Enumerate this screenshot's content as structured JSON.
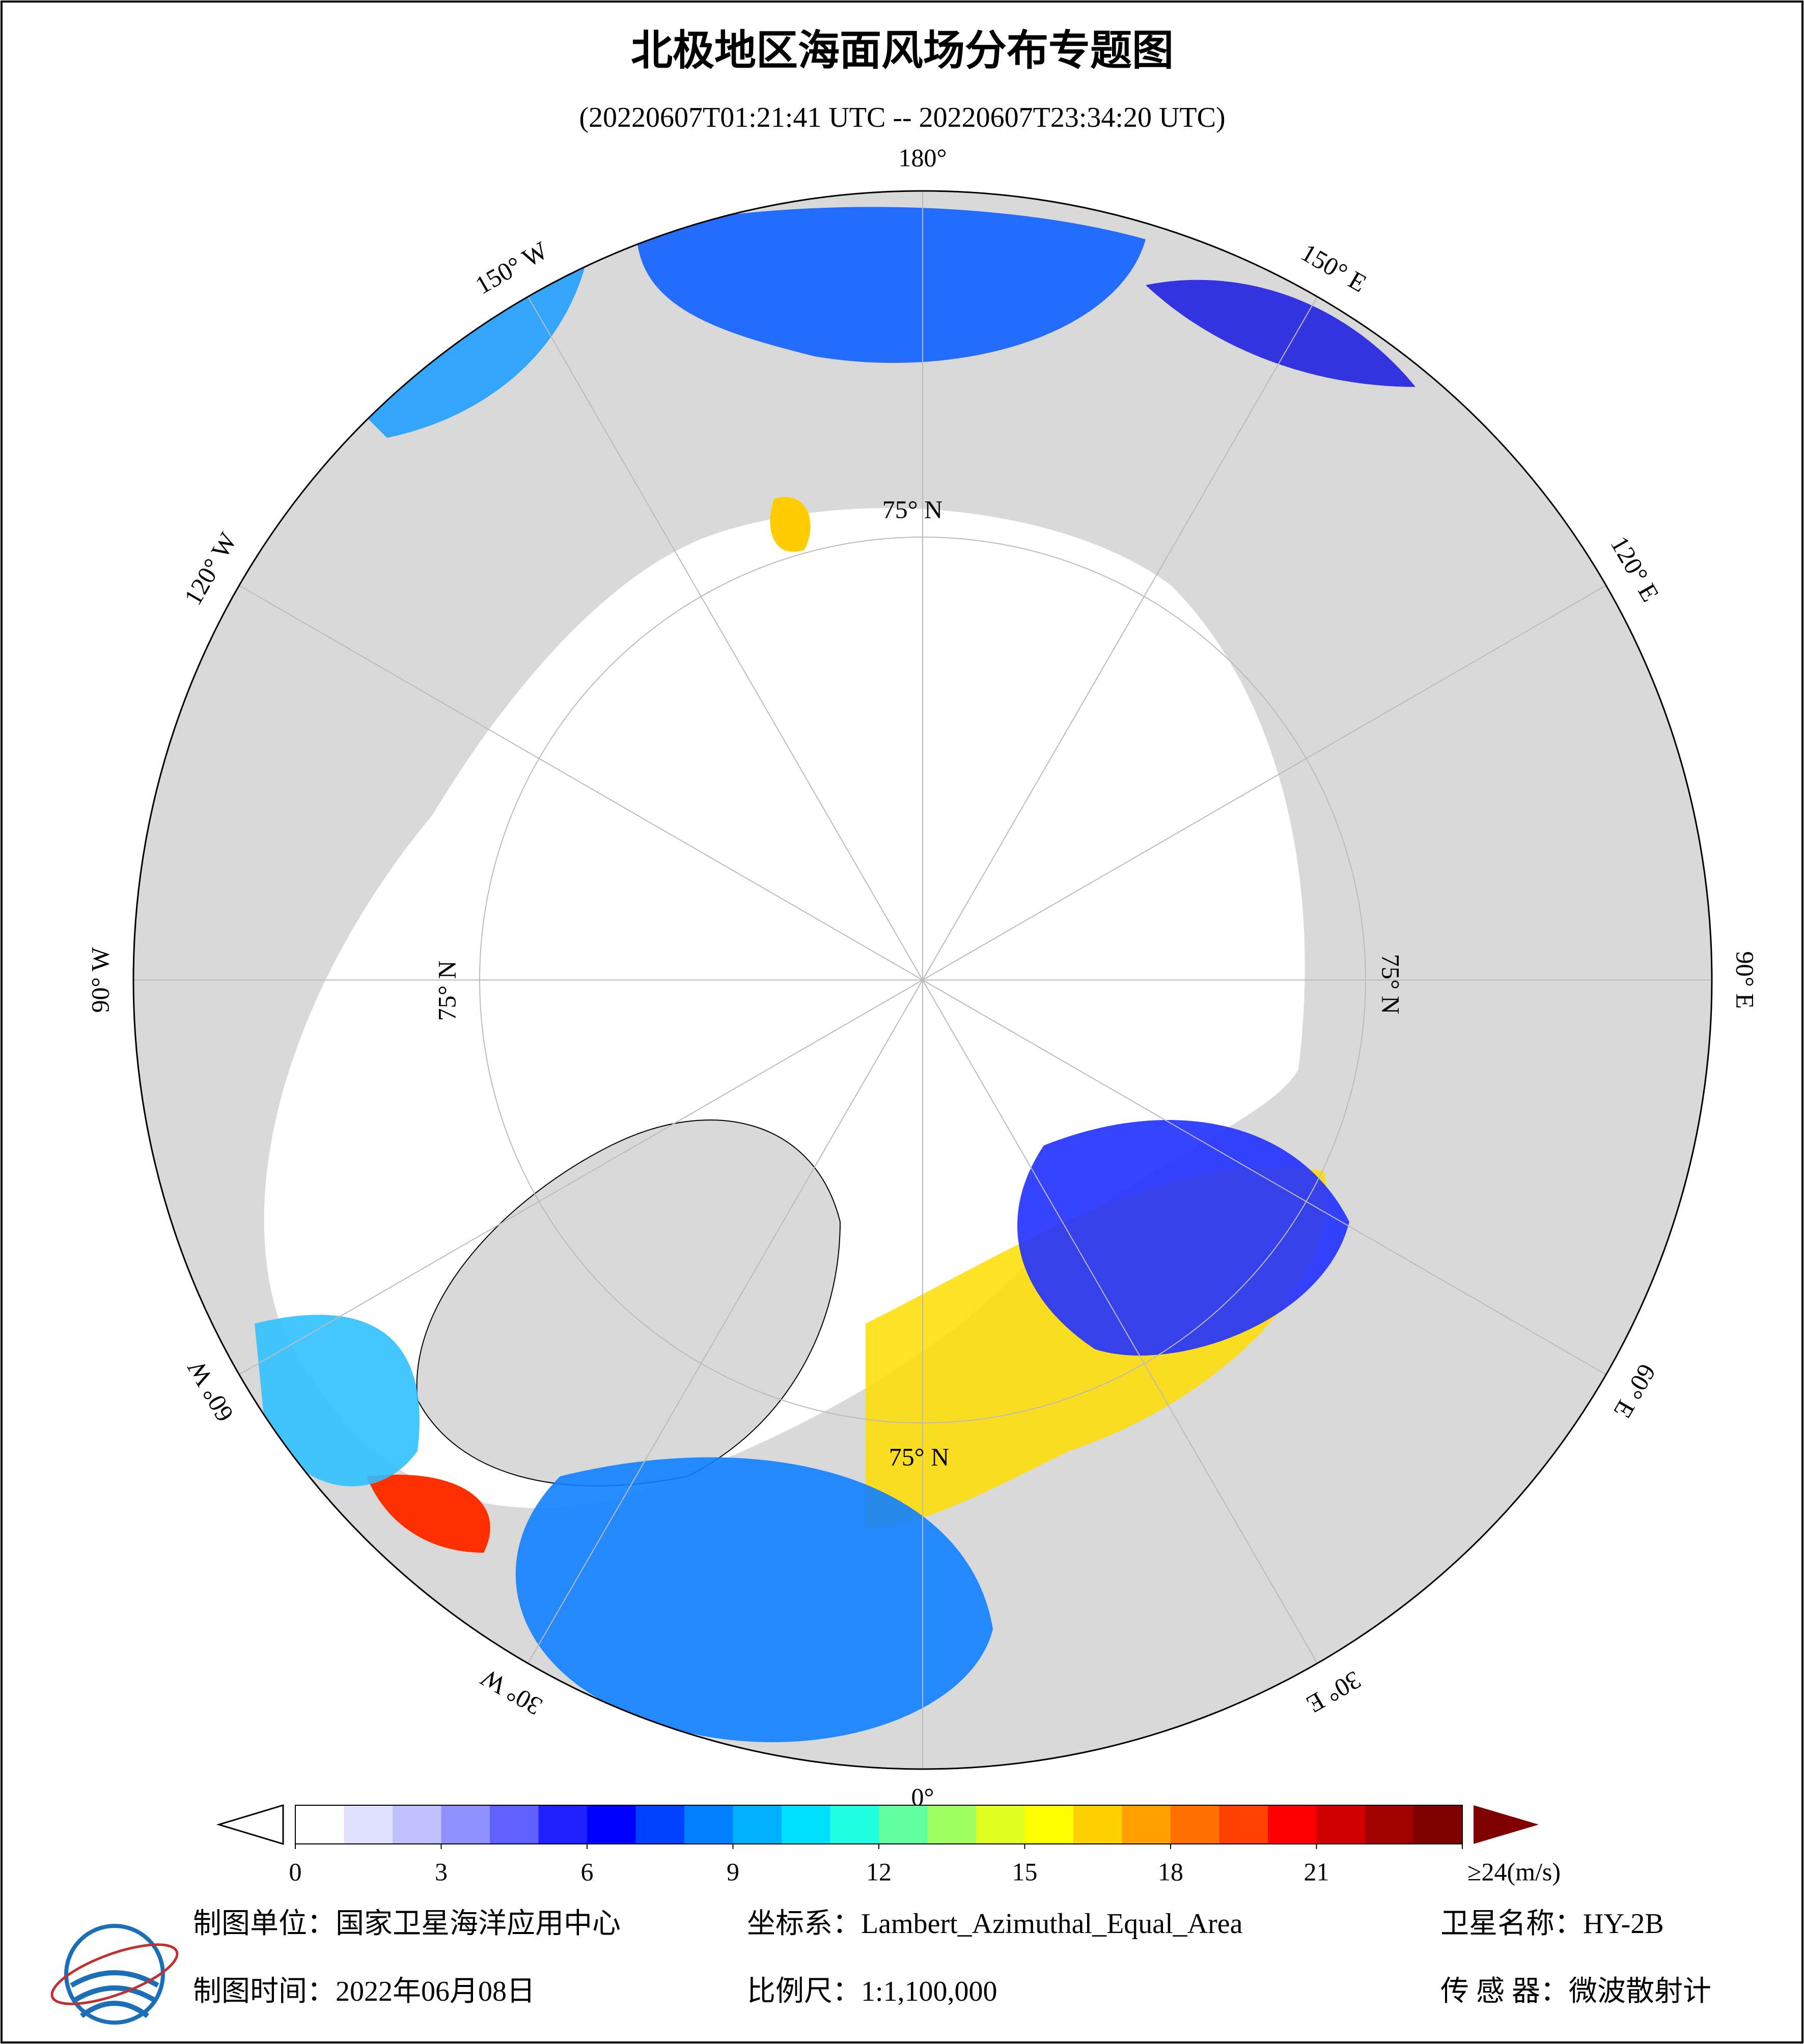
{
  "header": {
    "title": "北极地区海面风场分布专题图",
    "subtitle": "(20220607T01:21:41 UTC -- 20220607T23:34:20 UTC)"
  },
  "map": {
    "longitude_labels": [
      "180°",
      "150° E",
      "120° E",
      "90° E",
      "60° E",
      "30° E",
      "0°",
      "30° W",
      "60° W",
      "90° W",
      "120° W",
      "150° W"
    ],
    "latitude_labels": [
      "75° N",
      "75° N",
      "75° N",
      "75° N"
    ]
  },
  "colorbar": {
    "lim": [
      0,
      24
    ],
    "ticks": [
      0,
      3,
      6,
      9,
      12,
      15,
      18,
      21,
      {
        "value": 24,
        "label": "≥24(m/s)"
      }
    ],
    "colors": [
      "#ffffff",
      "#e0e0ff",
      "#c0c0ff",
      "#9090ff",
      "#6060ff",
      "#2020ff",
      "#0000ff",
      "#0040ff",
      "#0080ff",
      "#00b0ff",
      "#00e0ff",
      "#20ffe0",
      "#60ff a0",
      "#a0ff60",
      "#e0ff20",
      "#ffff00",
      "#ffd000",
      "#ffa000",
      "#ff7000",
      "#ff4000",
      "#ff0000",
      "#d00000",
      "#a00000",
      "#800000"
    ],
    "over_color": "#800000",
    "under_color": "#ffffff"
  },
  "footer": {
    "unit": "制图单位：国家卫星海洋应用中心",
    "crs": "坐标系：Lambert_Azimuthal_Equal_Area",
    "satellite": "卫星名称：HY-2B",
    "date": "制图时间：2022年06月08日",
    "scale": "比例尺：1:1,100,000",
    "sensor": "传 感 器：微波散射计"
  }
}
